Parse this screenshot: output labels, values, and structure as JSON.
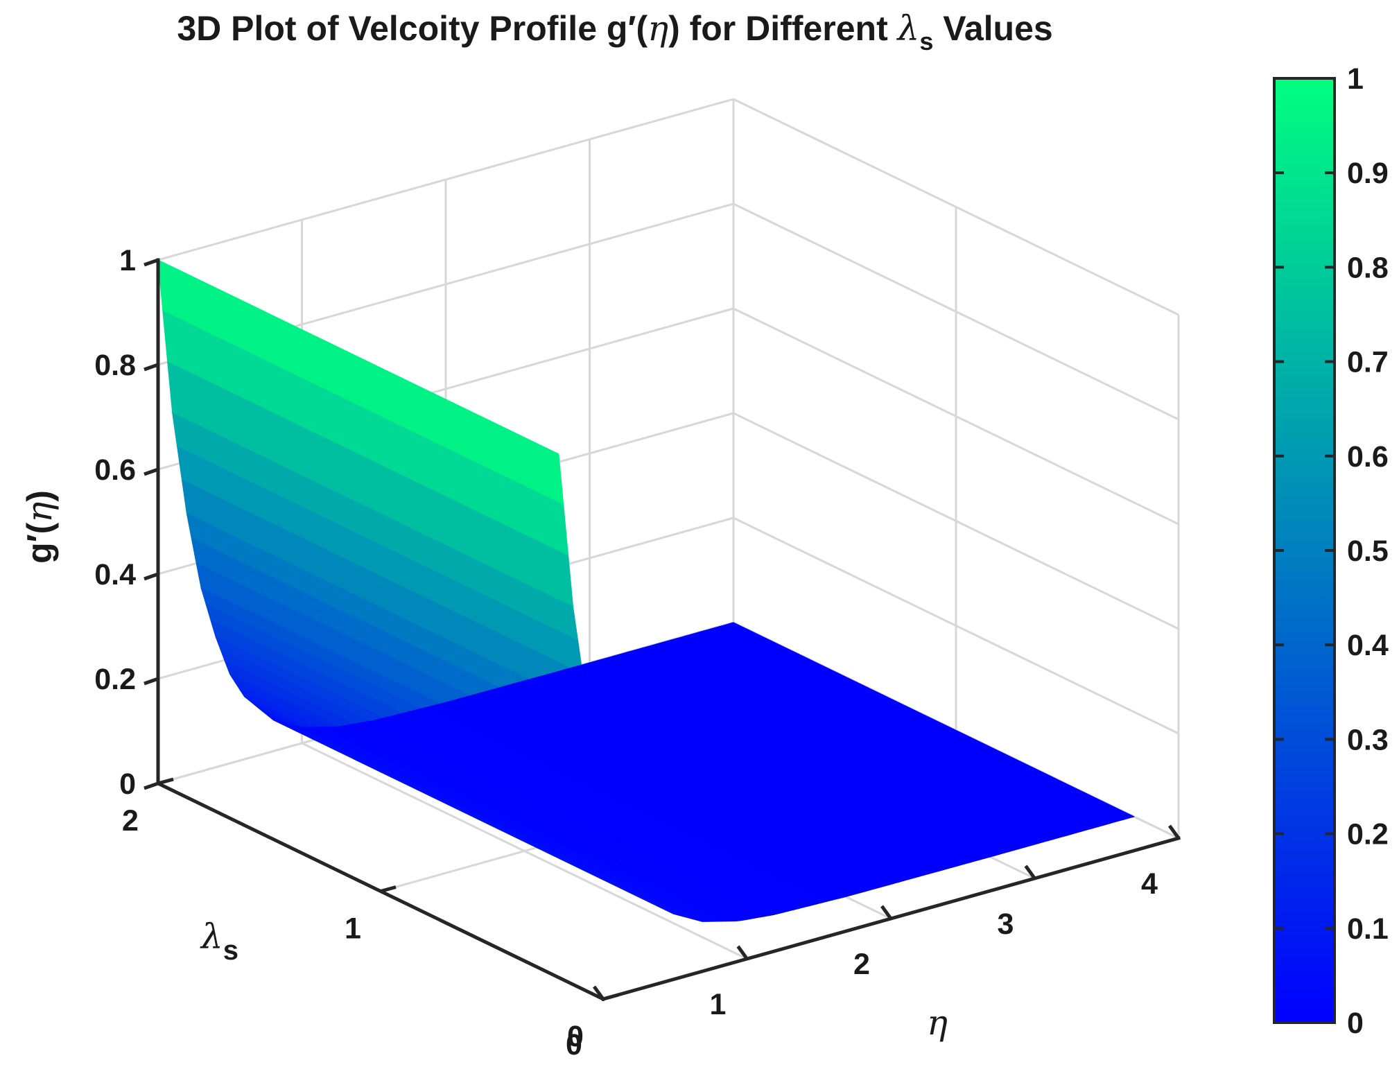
{
  "chart_data": {
    "type": "surface3d",
    "title": "3D Plot of Velcoity Profile g′(η) for Different  λs  Values",
    "title_parts": {
      "prefix": "3D Plot of Velcoity Profile g",
      "prime": "′",
      "paren_open": "(",
      "eta": "η",
      "middle": ") for Different  ",
      "lambda": "λ",
      "sub": "s",
      "suffix": "  Values"
    },
    "xlabel": {
      "symbol": "η"
    },
    "ylabel": {
      "symbol": "λ",
      "sub": "s"
    },
    "zlabel": {
      "base": "g",
      "prime": "′",
      "open": "(",
      "symbol": "η",
      "close": ")"
    },
    "xlim": [
      0,
      4
    ],
    "ylim": [
      0,
      2
    ],
    "zlim": [
      0,
      1
    ],
    "x_ticks": [
      "0",
      "1",
      "2",
      "3",
      "4"
    ],
    "y_ticks": [
      "0",
      "1",
      "2"
    ],
    "z_ticks": [
      "0",
      "0.2",
      "0.4",
      "0.6",
      "0.8",
      "1"
    ],
    "surface_x_range": [
      0,
      4
    ],
    "surface_y_range": [
      0.2,
      2
    ],
    "surface_description": "g'(eta) = exp(-3.5 eta), independent of lambda_s",
    "eta": [
      0,
      0.1,
      0.2,
      0.3,
      0.4,
      0.5,
      0.6,
      0.8,
      1.0,
      1.25,
      1.5,
      2.0,
      3.0,
      4.0
    ],
    "g_prime": [
      1.0,
      0.7,
      0.5,
      0.35,
      0.25,
      0.17,
      0.12,
      0.06,
      0.03,
      0.012,
      0.005,
      0.001,
      0.0,
      0.0
    ],
    "colormap": "winter",
    "colorbar": {
      "ticks": [
        "0",
        "0.1",
        "0.2",
        "0.3",
        "0.4",
        "0.5",
        "0.6",
        "0.7",
        "0.8",
        "0.9",
        "1"
      ],
      "min_color": "#0000ff",
      "max_color": "#00ff80",
      "range": [
        0,
        1
      ]
    },
    "grid": true,
    "box": false,
    "view": "default 3D (az -37.5, el 30)"
  }
}
